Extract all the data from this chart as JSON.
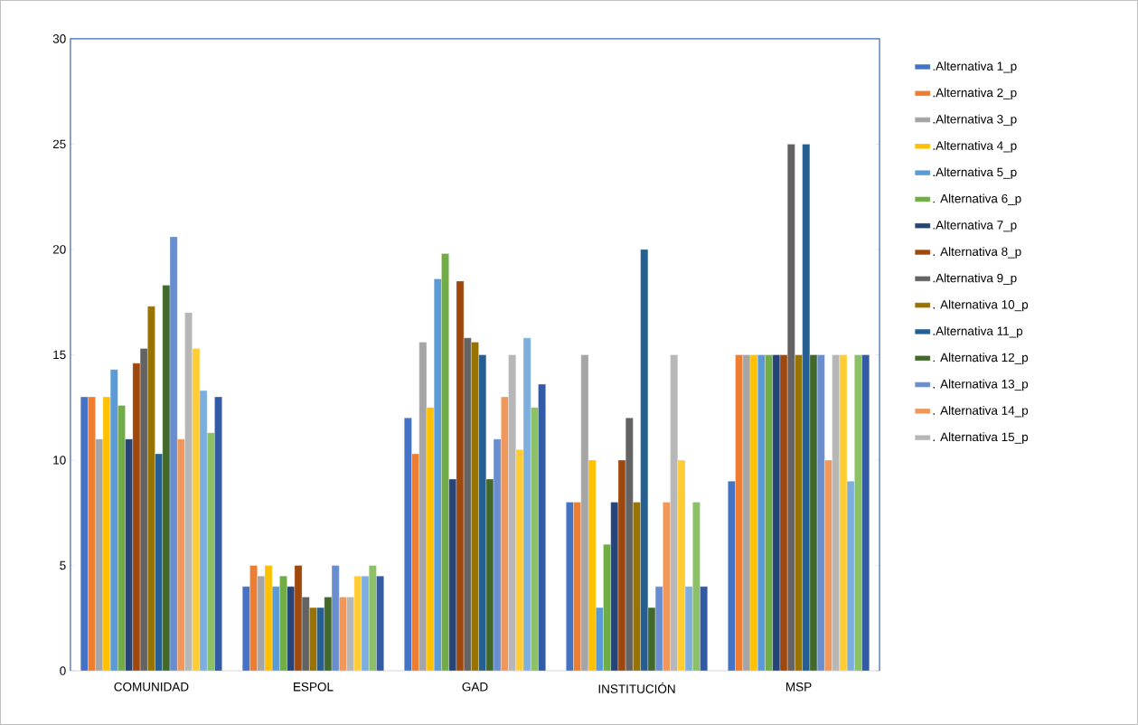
{
  "chart_data": {
    "type": "bar",
    "categories": [
      "COMUNIDAD",
      "ESPOL",
      "GAD",
      "INSTITUCIÓN",
      "MSP"
    ],
    "ylim": [
      0,
      30
    ],
    "yticks": [
      0,
      5,
      10,
      15,
      20,
      25,
      30
    ],
    "legend": "right",
    "series": [
      {
        "name": ".Alternativa 1_p",
        "color": "#4472c4",
        "values": [
          13,
          4,
          12,
          8,
          9
        ]
      },
      {
        "name": ".Alternativa 2_p",
        "color": "#ed7d31",
        "values": [
          13,
          5,
          10.3,
          8,
          15
        ]
      },
      {
        "name": ".Alternativa 3_p",
        "color": "#a5a5a5",
        "values": [
          11,
          4.5,
          15.6,
          15,
          15
        ]
      },
      {
        "name": ".Alternativa 4_p",
        "color": "#ffc000",
        "values": [
          13,
          5,
          12.5,
          10,
          15
        ]
      },
      {
        "name": ".Alternativa 5_p",
        "color": "#5b9bd5",
        "values": [
          14.3,
          4,
          18.6,
          3,
          15
        ]
      },
      {
        "name": ". Alternativa 6_p",
        "color": "#70ad47",
        "values": [
          12.6,
          4.5,
          19.8,
          6,
          15
        ]
      },
      {
        "name": ".Alternativa 7_p",
        "color": "#264478",
        "values": [
          11,
          4,
          9.1,
          8,
          15
        ]
      },
      {
        "name": ". Alternativa 8_p",
        "color": "#9e480e",
        "values": [
          14.6,
          5,
          18.5,
          10,
          15
        ]
      },
      {
        "name": ".Alternativa 9_p",
        "color": "#636363",
        "values": [
          15.3,
          3.5,
          15.8,
          12,
          25
        ]
      },
      {
        "name": ". Alternativa 10_p",
        "color": "#997300",
        "values": [
          17.3,
          3,
          15.6,
          8,
          15
        ]
      },
      {
        "name": ".Alternativa 11_p",
        "color": "#255e91",
        "values": [
          10.3,
          3,
          15,
          20,
          25
        ]
      },
      {
        "name": ". Alternativa 12_p",
        "color": "#43682b",
        "values": [
          18.3,
          3.5,
          9.1,
          3,
          15
        ]
      },
      {
        "name": ". Alternativa 13_p",
        "color": "#698ed0",
        "values": [
          20.6,
          5,
          11,
          4,
          15
        ]
      },
      {
        "name": ". Alternativa 14_p",
        "color": "#f1975a",
        "values": [
          11,
          3.5,
          13,
          8,
          10
        ]
      },
      {
        "name": ". Alternativa 15_p",
        "color": "#b7b7b7",
        "values": [
          17,
          3.5,
          15,
          15,
          15
        ]
      },
      {
        "color": "#ffcd33",
        "values": [
          15.3,
          4.5,
          10.5,
          10,
          15
        ]
      },
      {
        "color": "#7cafdd",
        "values": [
          13.3,
          4.5,
          15.8,
          4,
          9
        ]
      },
      {
        "color": "#8cc168",
        "values": [
          11.3,
          5,
          12.5,
          8,
          15
        ]
      },
      {
        "color": "#335aa5",
        "values": [
          13,
          4.5,
          13.6,
          4,
          15
        ]
      }
    ]
  }
}
